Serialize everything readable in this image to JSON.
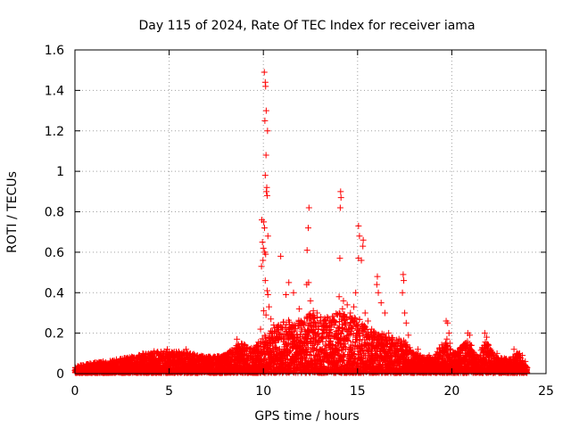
{
  "chart_data": {
    "type": "scatter",
    "title": "Day 115 of 2024, Rate Of TEC Index for receiver iama",
    "xlabel": "GPS time / hours",
    "ylabel": "ROTI / TECUs",
    "xlim": [
      0,
      25
    ],
    "ylim": [
      0,
      1.6
    ],
    "x_ticks": [
      0,
      5,
      10,
      15,
      20,
      25
    ],
    "x_tick_labels": [
      "0",
      "5",
      "10",
      "15",
      "20",
      "25"
    ],
    "y_ticks": [
      0,
      0.2,
      0.4,
      0.6,
      0.8,
      1.0,
      1.2,
      1.4,
      1.6
    ],
    "y_tick_labels": [
      "0",
      "0.2",
      "0.4",
      "0.6",
      "0.8",
      "1",
      "1.2",
      "1.4",
      "1.6"
    ],
    "grid": true,
    "marker": "+",
    "color": "#ff0000",
    "series": [
      {
        "name": "ROTI",
        "points": [
          [
            10.05,
            1.49
          ],
          [
            10.1,
            1.44
          ],
          [
            10.12,
            1.42
          ],
          [
            10.15,
            1.3
          ],
          [
            10.08,
            1.25
          ],
          [
            10.22,
            1.2
          ],
          [
            10.14,
            1.08
          ],
          [
            10.1,
            0.98
          ],
          [
            10.18,
            0.92
          ],
          [
            10.16,
            0.9
          ],
          [
            10.2,
            0.88
          ],
          [
            9.92,
            0.76
          ],
          [
            10.02,
            0.75
          ],
          [
            10.06,
            0.72
          ],
          [
            10.24,
            0.68
          ],
          [
            9.95,
            0.65
          ],
          [
            10.0,
            0.62
          ],
          [
            10.07,
            0.6
          ],
          [
            10.12,
            0.59
          ],
          [
            9.98,
            0.56
          ],
          [
            9.9,
            0.53
          ],
          [
            10.1,
            0.46
          ],
          [
            10.2,
            0.41
          ],
          [
            10.24,
            0.39
          ],
          [
            10.3,
            0.33
          ],
          [
            10.02,
            0.31
          ],
          [
            10.14,
            0.29
          ],
          [
            9.85,
            0.22
          ],
          [
            10.4,
            0.27
          ],
          [
            10.55,
            0.24
          ],
          [
            10.92,
            0.58
          ],
          [
            11.35,
            0.45
          ],
          [
            11.2,
            0.39
          ],
          [
            11.6,
            0.4
          ],
          [
            11.9,
            0.32
          ],
          [
            12.42,
            0.82
          ],
          [
            12.38,
            0.72
          ],
          [
            12.32,
            0.61
          ],
          [
            12.4,
            0.45
          ],
          [
            12.3,
            0.44
          ],
          [
            12.5,
            0.36
          ],
          [
            12.65,
            0.31
          ],
          [
            12.85,
            0.3
          ],
          [
            13.05,
            0.28
          ],
          [
            13.3,
            0.25
          ],
          [
            14.1,
            0.9
          ],
          [
            14.12,
            0.87
          ],
          [
            14.08,
            0.82
          ],
          [
            14.06,
            0.57
          ],
          [
            14.02,
            0.38
          ],
          [
            14.25,
            0.36
          ],
          [
            14.2,
            0.32
          ],
          [
            14.45,
            0.34
          ],
          [
            14.62,
            0.3
          ],
          [
            14.8,
            0.33
          ],
          [
            15.05,
            0.73
          ],
          [
            15.1,
            0.68
          ],
          [
            15.3,
            0.66
          ],
          [
            15.28,
            0.63
          ],
          [
            15.05,
            0.57
          ],
          [
            15.2,
            0.56
          ],
          [
            14.9,
            0.4
          ],
          [
            15.4,
            0.3
          ],
          [
            15.55,
            0.26
          ],
          [
            15.75,
            0.22
          ],
          [
            16.05,
            0.48
          ],
          [
            16.02,
            0.44
          ],
          [
            16.1,
            0.4
          ],
          [
            16.25,
            0.35
          ],
          [
            16.45,
            0.3
          ],
          [
            16.65,
            0.2
          ],
          [
            17.42,
            0.49
          ],
          [
            17.45,
            0.46
          ],
          [
            17.38,
            0.4
          ],
          [
            17.5,
            0.3
          ],
          [
            17.58,
            0.25
          ],
          [
            17.7,
            0.19
          ],
          [
            18.2,
            0.12
          ],
          [
            18.8,
            0.09
          ],
          [
            19.3,
            0.07
          ],
          [
            19.7,
            0.26
          ],
          [
            19.78,
            0.25
          ],
          [
            19.85,
            0.2
          ],
          [
            19.9,
            0.15
          ],
          [
            20.4,
            0.1
          ],
          [
            20.85,
            0.2
          ],
          [
            20.95,
            0.19
          ],
          [
            21.05,
            0.14
          ],
          [
            21.3,
            0.09
          ],
          [
            21.75,
            0.2
          ],
          [
            21.85,
            0.18
          ],
          [
            21.95,
            0.14
          ],
          [
            22.4,
            0.1
          ],
          [
            22.9,
            0.07
          ],
          [
            23.3,
            0.12
          ],
          [
            23.45,
            0.1
          ],
          [
            23.6,
            0.1
          ],
          [
            23.75,
            0.09
          ],
          [
            23.9,
            0.06
          ],
          [
            24.0,
            0.03
          ],
          [
            0.02,
            0.03
          ],
          [
            0.3,
            0.04
          ],
          [
            0.8,
            0.05
          ],
          [
            1.5,
            0.06
          ],
          [
            2.2,
            0.07
          ],
          [
            2.9,
            0.08
          ],
          [
            3.6,
            0.1
          ],
          [
            4.2,
            0.11
          ],
          [
            4.9,
            0.12
          ],
          [
            5.4,
            0.1
          ],
          [
            5.9,
            0.12
          ],
          [
            6.5,
            0.09
          ],
          [
            7.0,
            0.08
          ],
          [
            7.5,
            0.07
          ],
          [
            8.0,
            0.09
          ],
          [
            8.6,
            0.17
          ],
          [
            8.9,
            0.12
          ],
          [
            9.3,
            0.1
          ],
          [
            9.6,
            0.12
          ]
        ]
      }
    ],
    "baseline_envelope": [
      [
        0.0,
        0.03
      ],
      [
        1.0,
        0.05
      ],
      [
        2.0,
        0.06
      ],
      [
        3.0,
        0.08
      ],
      [
        4.0,
        0.1
      ],
      [
        5.0,
        0.11
      ],
      [
        6.0,
        0.1
      ],
      [
        7.0,
        0.08
      ],
      [
        8.0,
        0.09
      ],
      [
        8.7,
        0.15
      ],
      [
        9.5,
        0.13
      ],
      [
        10.0,
        0.18
      ],
      [
        10.5,
        0.22
      ],
      [
        11.0,
        0.26
      ],
      [
        12.0,
        0.26
      ],
      [
        12.5,
        0.3
      ],
      [
        13.0,
        0.26
      ],
      [
        14.0,
        0.3
      ],
      [
        14.5,
        0.28
      ],
      [
        15.0,
        0.28
      ],
      [
        15.5,
        0.22
      ],
      [
        16.0,
        0.2
      ],
      [
        17.0,
        0.18
      ],
      [
        17.5,
        0.16
      ],
      [
        18.0,
        0.1
      ],
      [
        19.0,
        0.07
      ],
      [
        19.7,
        0.18
      ],
      [
        20.0,
        0.1
      ],
      [
        20.9,
        0.16
      ],
      [
        21.3,
        0.08
      ],
      [
        21.8,
        0.16
      ],
      [
        22.3,
        0.08
      ],
      [
        23.0,
        0.07
      ],
      [
        23.5,
        0.1
      ],
      [
        24.0,
        0.03
      ]
    ]
  }
}
